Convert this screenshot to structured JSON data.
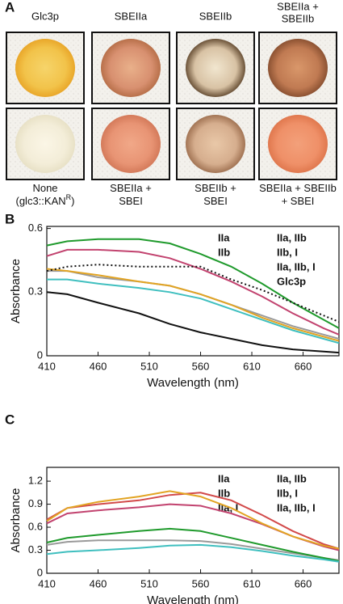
{
  "panel_a": {
    "label": "A",
    "top_labels": [
      [
        "Glc3p"
      ],
      [
        "SBEIIa"
      ],
      [
        "SBEIIb"
      ],
      [
        "SBEIIa +",
        "SBEIIb"
      ]
    ],
    "bottom_labels": [
      {
        "lines": [
          "None",
          "(glc3::KAN"
        ],
        "superscript": "R",
        "tail": ")"
      },
      {
        "lines": [
          "SBEIIa +",
          "SBEI"
        ]
      },
      {
        "lines": [
          "SBEIIb +",
          "SBEI"
        ]
      },
      {
        "lines": [
          "SBEIIa + SBEIIb",
          "+ SBEI"
        ]
      }
    ]
  },
  "chart_data": [
    {
      "type": "line",
      "label": "B",
      "xlabel": "Wavelength (nm)",
      "ylabel": "Absorbance",
      "x": [
        410,
        430,
        460,
        500,
        530,
        560,
        590,
        620,
        650,
        680,
        695
      ],
      "xlim": [
        410,
        695
      ],
      "xticks": [
        410,
        460,
        510,
        560,
        610,
        660
      ],
      "ylim": [
        0,
        0.61
      ],
      "yticks": [
        0,
        0.3,
        0.6
      ],
      "series": [
        {
          "name": "IIa",
          "color": "#9a9a9a",
          "values": [
            0.4,
            0.4,
            0.37,
            0.35,
            0.33,
            0.29,
            0.24,
            0.19,
            0.14,
            0.1,
            0.08
          ]
        },
        {
          "name": "IIb",
          "color": "#1f9a2c",
          "values": [
            0.52,
            0.54,
            0.55,
            0.55,
            0.53,
            0.48,
            0.42,
            0.34,
            0.25,
            0.17,
            0.13
          ]
        },
        {
          "name": "IIa, IIb",
          "color": "#3fbfbf",
          "values": [
            0.36,
            0.36,
            0.34,
            0.32,
            0.3,
            0.27,
            0.22,
            0.17,
            0.12,
            0.08,
            0.06
          ]
        },
        {
          "name": "IIb, I",
          "color": "#c2436f",
          "values": [
            0.47,
            0.5,
            0.5,
            0.49,
            0.46,
            0.41,
            0.35,
            0.28,
            0.2,
            0.13,
            0.1
          ]
        },
        {
          "name": "IIa, IIb, I",
          "color": "#e2a423",
          "values": [
            0.41,
            0.4,
            0.38,
            0.35,
            0.33,
            0.29,
            0.24,
            0.18,
            0.13,
            0.09,
            0.07
          ]
        },
        {
          "name": "Glc3p",
          "color": "#111111",
          "style": "dotted",
          "values": [
            0.4,
            0.42,
            0.43,
            0.42,
            0.42,
            0.42,
            0.36,
            0.31,
            0.25,
            0.19,
            0.16
          ]
        },
        {
          "color": "#111111",
          "values": [
            0.3,
            0.29,
            0.25,
            0.2,
            0.15,
            0.11,
            0.08,
            0.05,
            0.03,
            0.02,
            0.015
          ]
        }
      ]
    },
    {
      "type": "line",
      "label": "C",
      "xlabel": "Wavelength (nm)",
      "ylabel": "Absorbance",
      "x": [
        410,
        430,
        460,
        500,
        530,
        560,
        590,
        620,
        650,
        680,
        695
      ],
      "xlim": [
        410,
        695
      ],
      "xticks": [
        410,
        460,
        510,
        560,
        610,
        660
      ],
      "ylim": [
        0,
        1.38
      ],
      "yticks": [
        0,
        0.3,
        0.6,
        0.9,
        1.2
      ],
      "series": [
        {
          "name": "IIa",
          "color": "#9a9a9a",
          "values": [
            0.37,
            0.41,
            0.43,
            0.43,
            0.43,
            0.42,
            0.38,
            0.32,
            0.26,
            0.2,
            0.17
          ]
        },
        {
          "name": "IIb",
          "color": "#1f9a2c",
          "values": [
            0.4,
            0.46,
            0.5,
            0.55,
            0.58,
            0.55,
            0.46,
            0.37,
            0.28,
            0.2,
            0.16
          ]
        },
        {
          "name": "IIa, I",
          "color": "#d24a4a",
          "values": [
            0.7,
            0.85,
            0.9,
            0.95,
            1.02,
            1.05,
            0.95,
            0.76,
            0.55,
            0.38,
            0.32
          ]
        },
        {
          "name": "IIa, IIb",
          "color": "#3fbfbf",
          "values": [
            0.25,
            0.28,
            0.3,
            0.33,
            0.36,
            0.37,
            0.34,
            0.29,
            0.23,
            0.18,
            0.15
          ]
        },
        {
          "name": "IIb, I",
          "color": "#c2436f",
          "values": [
            0.65,
            0.78,
            0.82,
            0.86,
            0.9,
            0.88,
            0.78,
            0.64,
            0.48,
            0.35,
            0.3
          ]
        },
        {
          "name": "IIa, IIb, I",
          "color": "#e2a423",
          "values": [
            0.68,
            0.85,
            0.93,
            1.0,
            1.07,
            1.0,
            0.85,
            0.65,
            0.48,
            0.36,
            0.32
          ]
        }
      ]
    }
  ]
}
